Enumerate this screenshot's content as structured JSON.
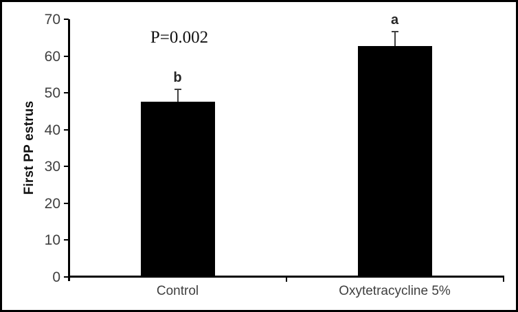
{
  "chart_data": {
    "type": "bar",
    "title": "",
    "xlabel": "",
    "ylabel": "First PP estrus",
    "categories": [
      "Control",
      "Oxytetracycline 5%"
    ],
    "values": [
      47.5,
      62.7
    ],
    "errors_plus": [
      3.5,
      4.0
    ],
    "bar_significance_letters": [
      "b",
      "a"
    ],
    "annotation": "P=0.002",
    "ylim": [
      0,
      70
    ],
    "yticks": [
      0,
      10,
      20,
      30,
      40,
      50,
      60,
      70
    ],
    "grid": "off",
    "legend": "none",
    "bar_color": "#000000",
    "axis_color": "#000000",
    "tick_label_color": "#3f3f3f",
    "error_bar_color": "#404040",
    "frame_color": "#000000",
    "background_color": "#ffffff"
  }
}
